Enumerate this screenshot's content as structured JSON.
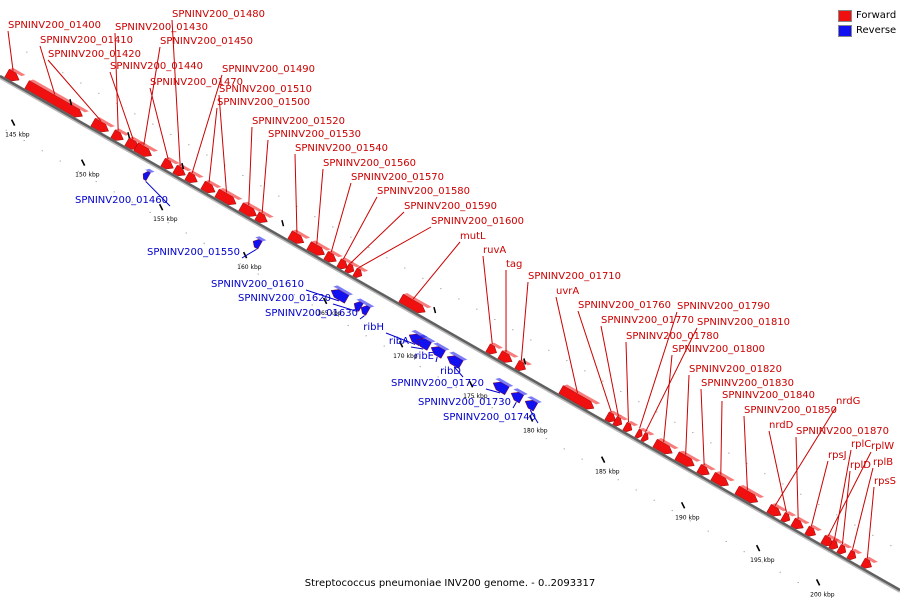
{
  "caption": "Streptococcus pneumoniae INV200 genome. - 0..2093317",
  "legend": {
    "forward": {
      "label": "Forward",
      "color": "#f01010"
    },
    "reverse": {
      "label": "Reverse",
      "color": "#1010f0"
    }
  },
  "scale": {
    "ticks": [
      "145 kbp",
      "150 kbp",
      "155 kbp",
      "160 kbp",
      "165 kbp",
      "170 kbp",
      "175 kbp",
      "180 kbp",
      "185 kbp",
      "190 kbp",
      "195 kbp",
      "200 kbp"
    ]
  },
  "forward_genes": [
    "SPNINV200_01400",
    "SPNINV200_01410",
    "SPNINV200_01420",
    "SPNINV200_01430",
    "SPNINV200_01440",
    "SPNINV200_01450",
    "SPNINV200_01470",
    "SPNINV200_01480",
    "SPNINV200_01490",
    "SPNINV200_01500",
    "SPNINV200_01510",
    "SPNINV200_01520",
    "SPNINV200_01530",
    "SPNINV200_01540",
    "SPNINV200_01560",
    "SPNINV200_01570",
    "SPNINV200_01580",
    "SPNINV200_01590",
    "SPNINV200_01600",
    "mutL",
    "ruvA",
    "tag",
    "SPNINV200_01710",
    "uvrA",
    "SPNINV200_01760",
    "SPNINV200_01770",
    "SPNINV200_01780",
    "SPNINV200_01790",
    "SPNINV200_01810",
    "SPNINV200_01800",
    "SPNINV200_01820",
    "SPNINV200_01830",
    "SPNINV200_01840",
    "SPNINV200_01850",
    "nrdG",
    "nrdD",
    "SPNINV200_01870",
    "rplW",
    "rpsJ",
    "rplC",
    "rplD",
    "rplB",
    "rpsS"
  ],
  "reverse_genes": [
    "SPNINV200_01460",
    "SPNINV200_01550",
    "SPNINV200_01610",
    "SPNINV200_01620",
    "SPNINV200_01630",
    "ribH",
    "ribA",
    "ribE",
    "ribD",
    "SPNINV200_01720",
    "SPNINV200_01730",
    "SPNINV200_01740"
  ]
}
